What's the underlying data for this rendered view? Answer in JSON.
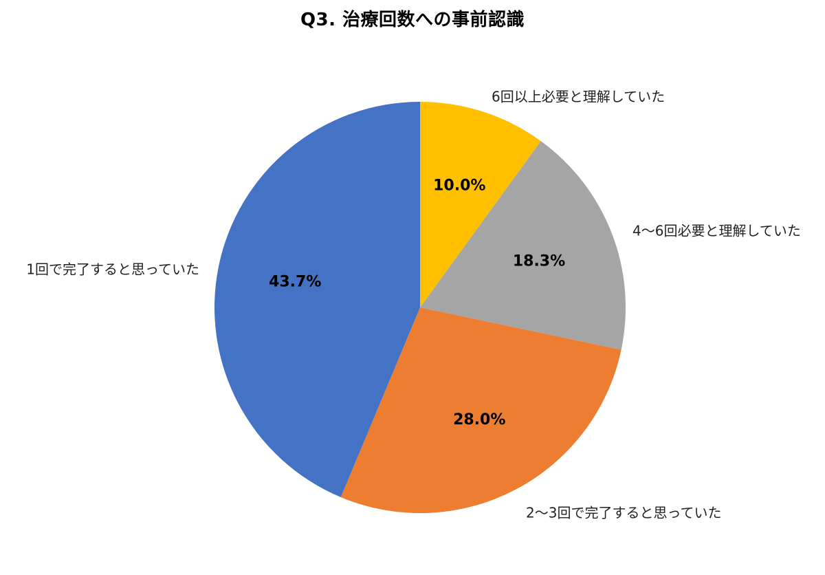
{
  "chart_data": {
    "type": "pie",
    "title": "Q3. 治療回数への事前認識",
    "start_angle_deg": 0,
    "direction": "clockwise",
    "legend": "none",
    "slices": [
      {
        "label": "6回以上必要と理解していた",
        "value": 10.0,
        "value_label": "10.0%",
        "color": "#ffc000"
      },
      {
        "label": "4〜6回必要と理解していた",
        "value": 18.3,
        "value_label": "18.3%",
        "color": "#a5a5a5"
      },
      {
        "label": "2〜3回で完了すると思っていた",
        "value": 28.0,
        "value_label": "28.0%",
        "color": "#ed7d31"
      },
      {
        "label": "1回で完了すると思っていた",
        "value": 43.7,
        "value_label": "43.7%",
        "color": "#4472c4"
      }
    ]
  }
}
